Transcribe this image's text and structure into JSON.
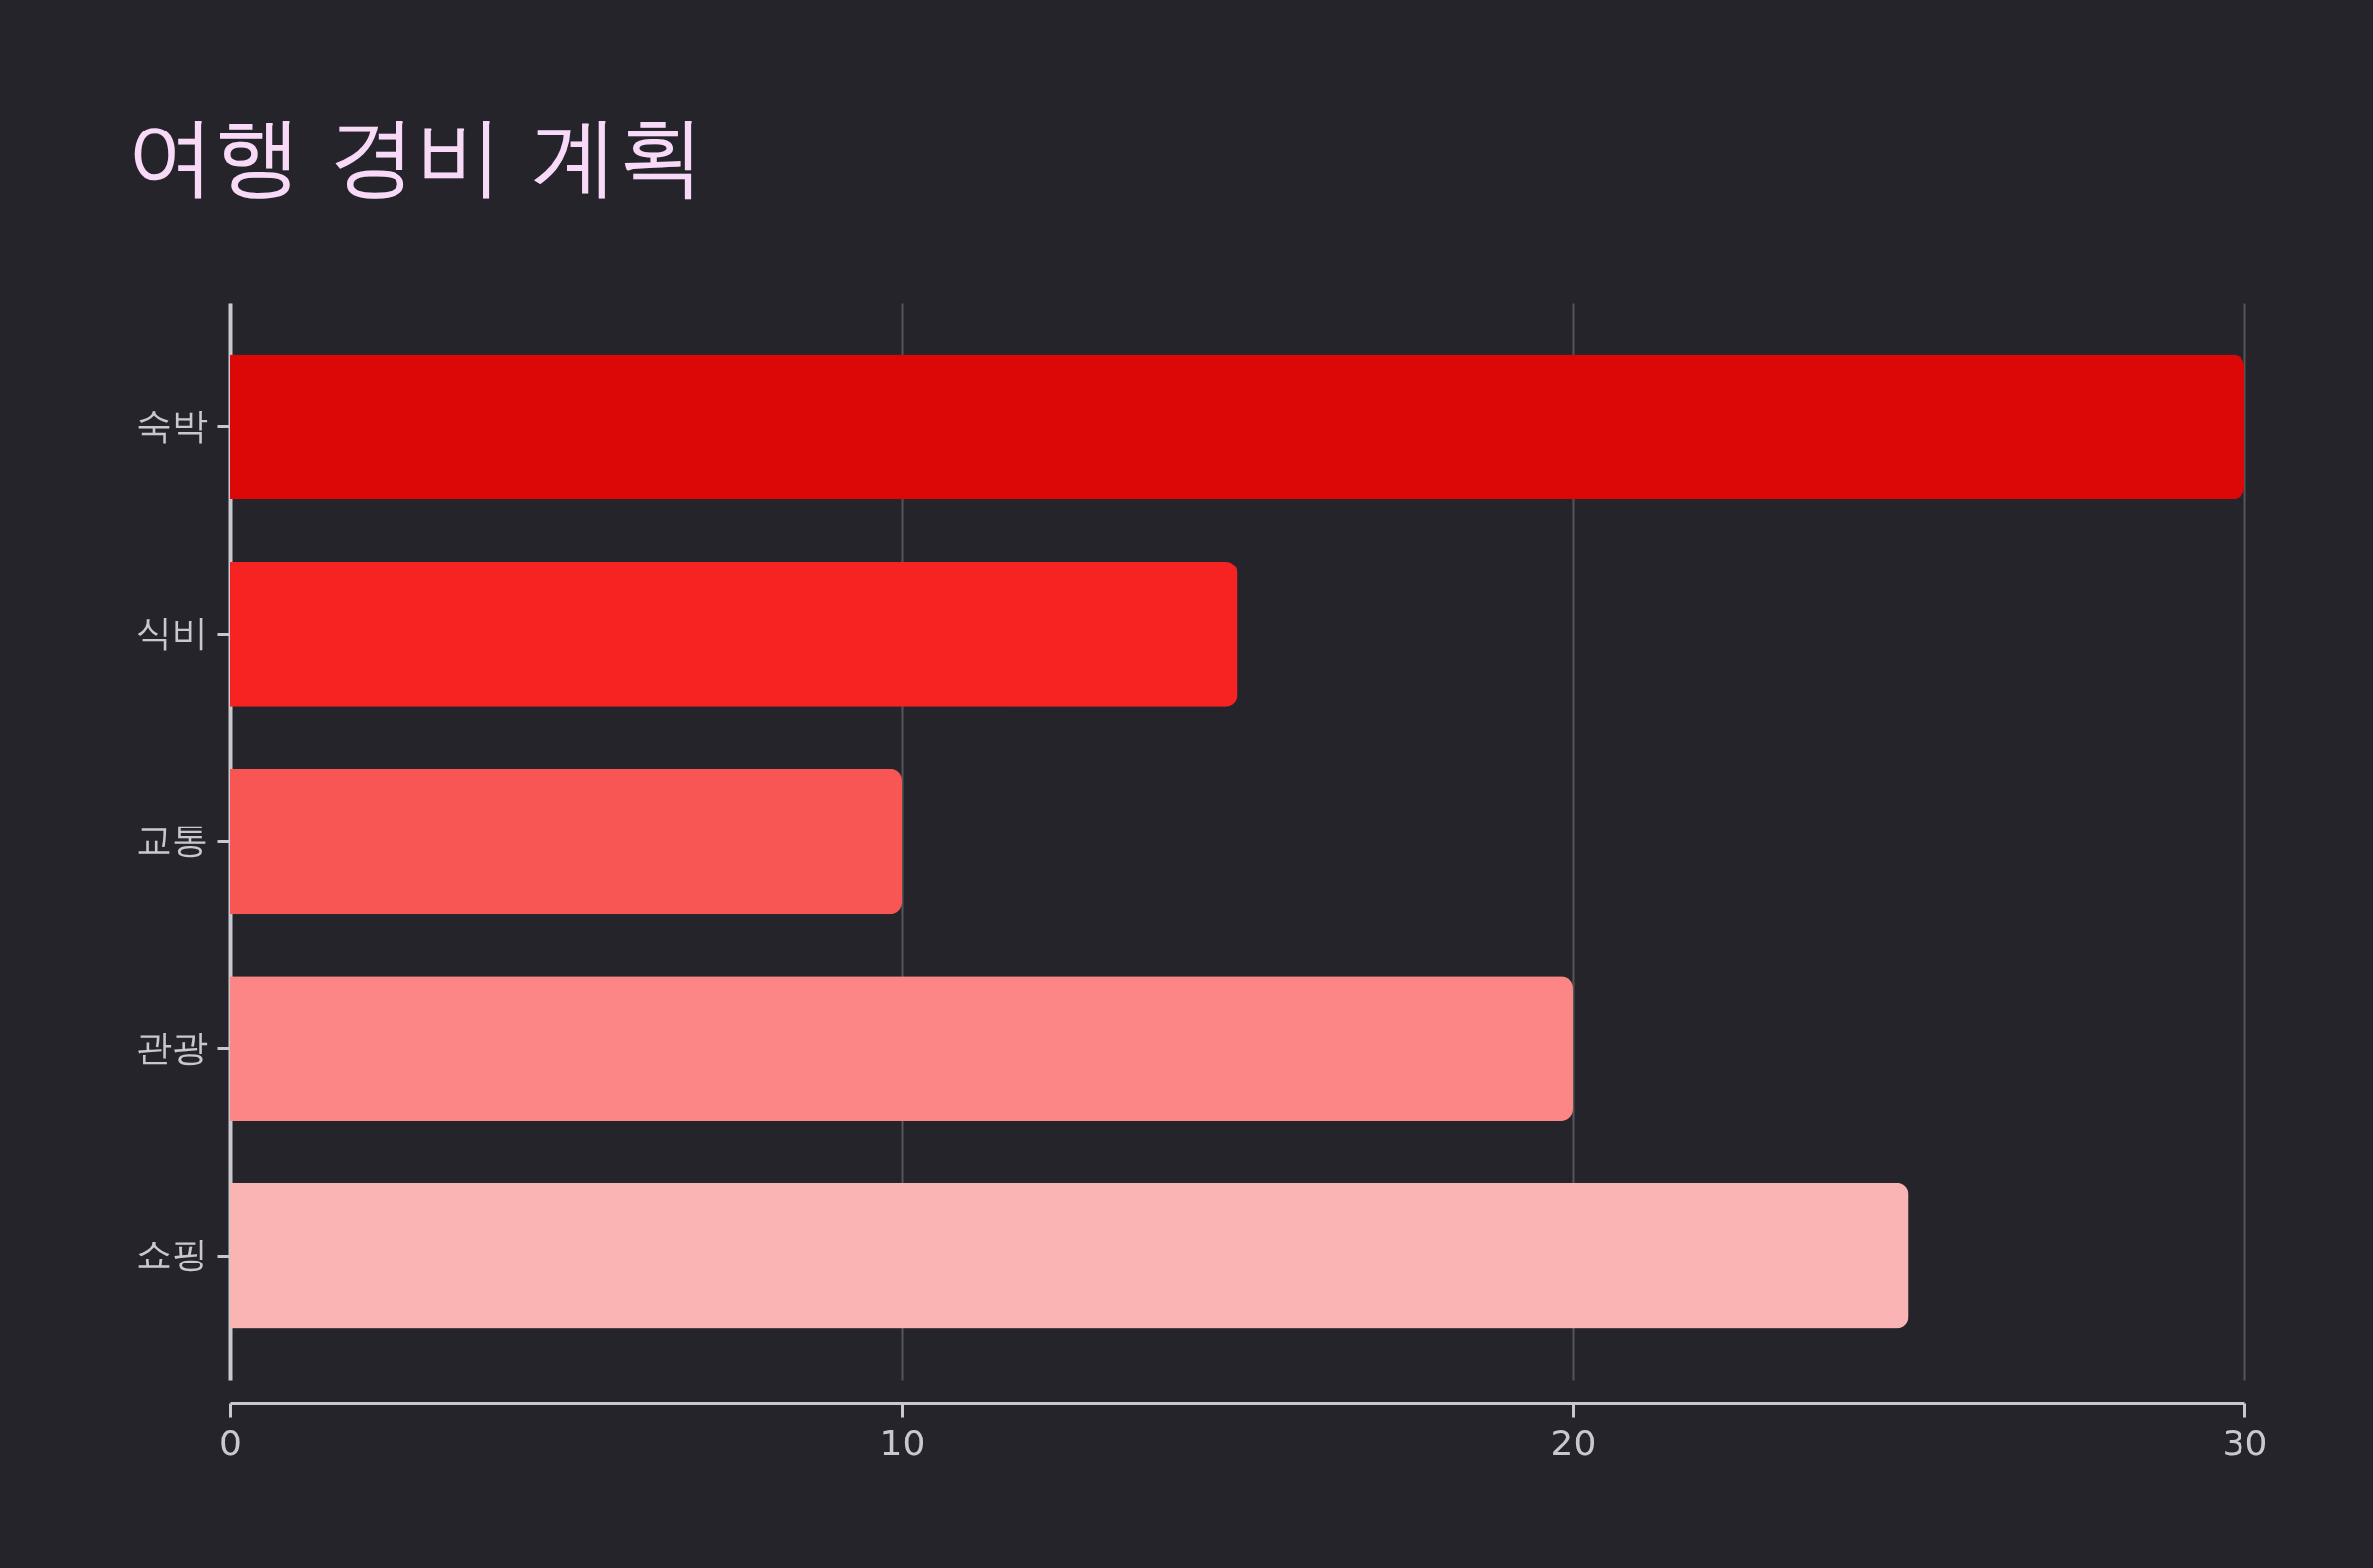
{
  "chart_data": {
    "type": "bar",
    "orientation": "horizontal",
    "title": "여행 경비 계획",
    "categories": [
      "숙박",
      "식비",
      "교통",
      "관광",
      "쇼핑"
    ],
    "values": [
      30,
      15,
      10,
      20,
      25
    ],
    "colors": [
      "#dc0707",
      "#f72222",
      "#f85555",
      "#fc8585",
      "#fbb4b4"
    ],
    "xlim": [
      0,
      30
    ],
    "xticks": [
      0,
      10,
      20,
      30
    ],
    "grid": "x"
  }
}
